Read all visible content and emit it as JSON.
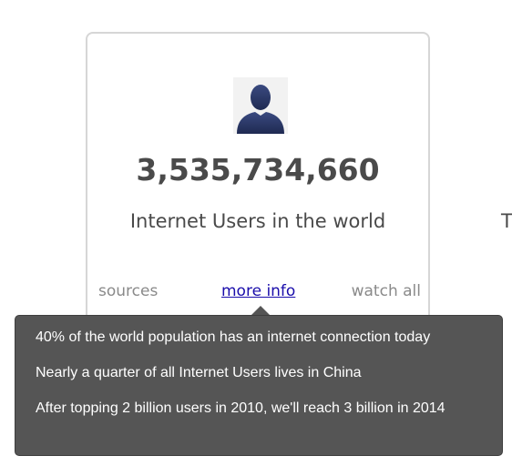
{
  "card": {
    "count": "3,535,734,660",
    "caption": "Internet Users in the world",
    "links": {
      "sources": "sources",
      "more_info": "more info",
      "watch_all": "watch all"
    },
    "icon": "user-silhouette-icon"
  },
  "side_text": "T",
  "tooltip": {
    "lines": [
      "40% of the world population has an internet connection today",
      "Nearly a quarter of all Internet Users lives in China",
      "After topping 2 billion users in 2010, we'll reach 3 billion in 2014"
    ]
  },
  "colors": {
    "tooltip_bg": "#555555",
    "link": "#1a0dab",
    "count_text": "#4a4a4a",
    "avatar": "#2c3a66"
  }
}
